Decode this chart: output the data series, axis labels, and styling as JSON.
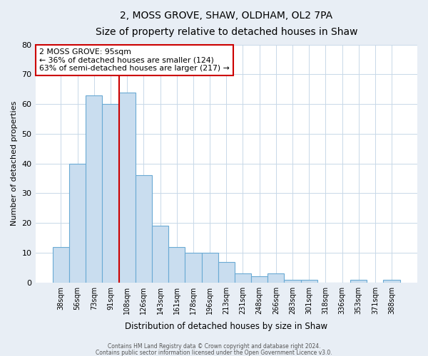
{
  "title": "2, MOSS GROVE, SHAW, OLDHAM, OL2 7PA",
  "subtitle": "Size of property relative to detached houses in Shaw",
  "xlabel": "Distribution of detached houses by size in Shaw",
  "ylabel": "Number of detached properties",
  "bar_color": "#c9ddef",
  "bar_edge_color": "#6aaad4",
  "categories": [
    "38sqm",
    "56sqm",
    "73sqm",
    "91sqm",
    "108sqm",
    "126sqm",
    "143sqm",
    "161sqm",
    "178sqm",
    "196sqm",
    "213sqm",
    "231sqm",
    "248sqm",
    "266sqm",
    "283sqm",
    "301sqm",
    "318sqm",
    "336sqm",
    "353sqm",
    "371sqm",
    "388sqm"
  ],
  "values": [
    12,
    40,
    63,
    60,
    64,
    36,
    19,
    12,
    10,
    10,
    7,
    3,
    2,
    3,
    1,
    1,
    0,
    0,
    1,
    0,
    1
  ],
  "ylim": [
    0,
    80
  ],
  "yticks": [
    0,
    10,
    20,
    30,
    40,
    50,
    60,
    70,
    80
  ],
  "property_label": "2 MOSS GROVE: 95sqm",
  "annotation_line1": "← 36% of detached houses are smaller (124)",
  "annotation_line2": "63% of semi-detached houses are larger (217) →",
  "vline_color": "#cc0000",
  "vline_x_index": 3.5,
  "annotation_box_color": "#ffffff",
  "annotation_box_edge": "#cc0000",
  "footer1": "Contains HM Land Registry data © Crown copyright and database right 2024.",
  "footer2": "Contains public sector information licensed under the Open Government Licence v3.0.",
  "background_color": "#e8eef5",
  "plot_bg_color": "#ffffff",
  "grid_color": "#c8d8e8"
}
